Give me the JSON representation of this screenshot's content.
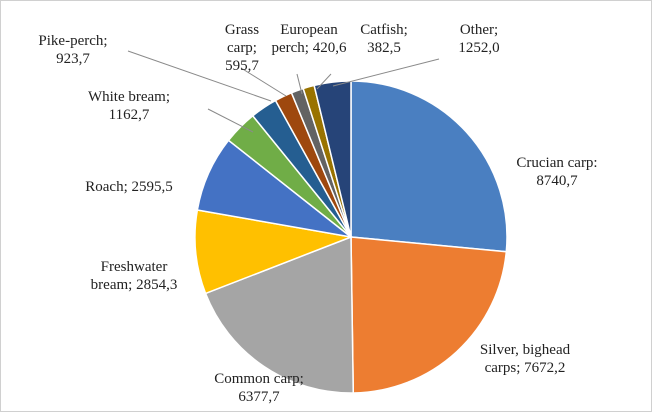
{
  "chart_data": {
    "type": "pie",
    "slices": [
      {
        "label_lines": [
          "Crucian carp:",
          "8740,7"
        ],
        "value": 8740.7,
        "color": "#4a7fc1"
      },
      {
        "label_lines": [
          "Silver, bighead",
          "carps; 7672,2"
        ],
        "value": 7672.2,
        "color": "#ed7d31"
      },
      {
        "label_lines": [
          "Common carp;",
          "6377,7"
        ],
        "value": 6377.7,
        "color": "#a5a5a5"
      },
      {
        "label_lines": [
          "Freshwater",
          "bream; 2854,3"
        ],
        "value": 2854.3,
        "color": "#ffc000"
      },
      {
        "label_lines": [
          "Roach; 2595,5"
        ],
        "value": 2595.5,
        "color": "#4472c4"
      },
      {
        "label_lines": [
          "White bream;",
          "1162,7"
        ],
        "value": 1162.7,
        "color": "#70ad47"
      },
      {
        "label_lines": [
          "Pike-perch;",
          "923,7"
        ],
        "value": 923.7,
        "color": "#255e91"
      },
      {
        "label_lines": [
          "Grass",
          "carp;",
          "595,7"
        ],
        "value": 595.7,
        "color": "#9e480e"
      },
      {
        "label_lines": [
          "European",
          "perch; 420,6"
        ],
        "value": 420.6,
        "color": "#636363"
      },
      {
        "label_lines": [
          "Catfish;",
          "382,5"
        ],
        "value": 382.5,
        "color": "#997300"
      },
      {
        "label_lines": [
          "Other;",
          "1252,0"
        ],
        "value": 1252.0,
        "color": "#264478"
      }
    ]
  }
}
